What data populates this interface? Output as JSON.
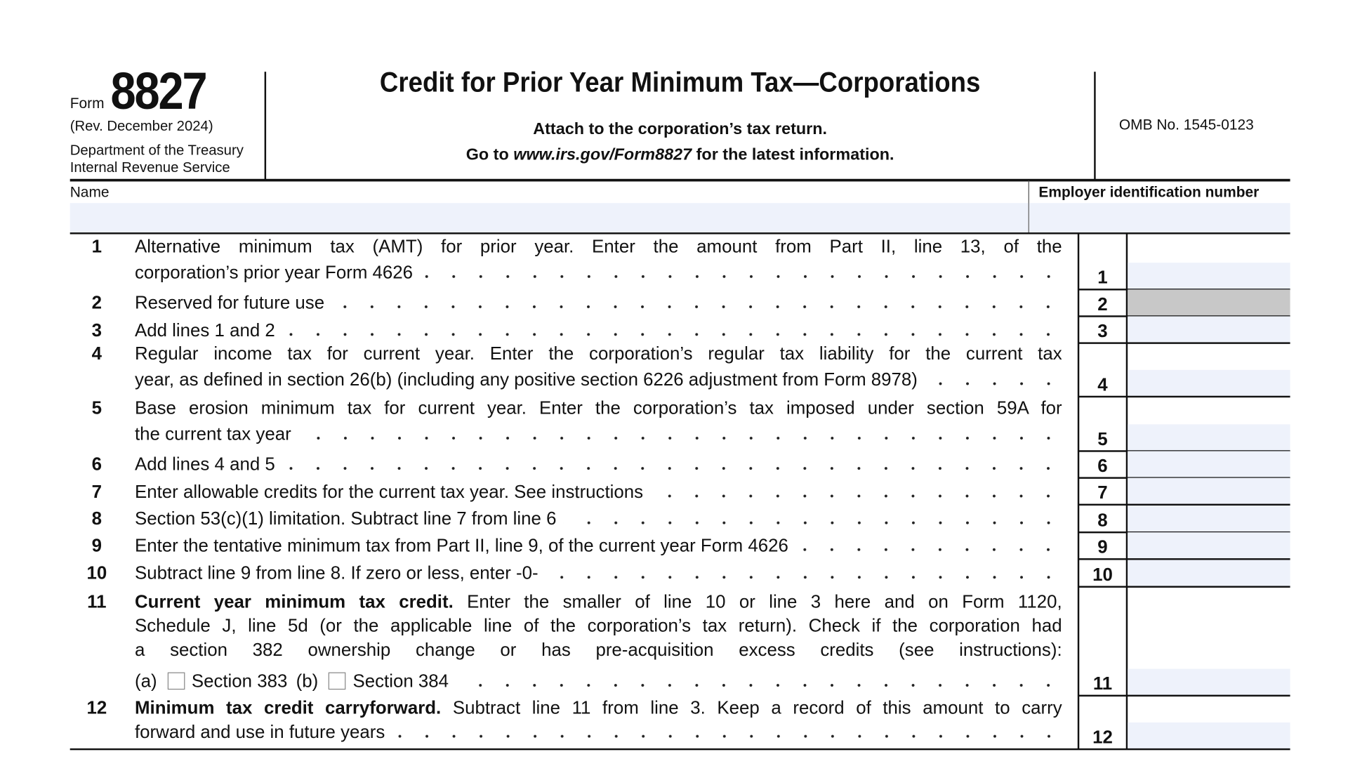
{
  "header": {
    "form_label": "Form",
    "form_number": "8827",
    "revision": "(Rev. December 2024)",
    "department": "Department of the Treasury",
    "agency": "Internal Revenue Service",
    "title": "Credit for Prior Year Minimum Tax—Corporations",
    "attach": "Attach to the corporation’s tax return.",
    "goto_prefix": "Go to ",
    "goto_url": "www.irs.gov/Form8827",
    "goto_suffix": " for the latest information.",
    "omb": "OMB No. 1545-0123"
  },
  "fields": {
    "name_label": "Name",
    "name_value": "",
    "ein_label": "Employer identification number",
    "ein_value": ""
  },
  "colors": {
    "field_fill": "#eef2fb",
    "reserved_fill": "#c8c8c8"
  },
  "lines": [
    {
      "num": "1",
      "text": [
        "Alternative minimum tax (AMT) for prior year. Enter the amount from Part II, line 13, of the",
        "corporation’s prior year Form 4626"
      ],
      "box": "1",
      "value": ""
    },
    {
      "num": "2",
      "text": [
        "Reserved for future use"
      ],
      "box": "2",
      "value": "",
      "reserved": true
    },
    {
      "num": "3",
      "text": [
        "Add lines 1 and 2"
      ],
      "box": "3",
      "value": ""
    },
    {
      "num": "4",
      "text": [
        "Regular income tax for current year. Enter the corporation’s regular tax liability for the current tax",
        "year, as defined in section 26(b) (including any positive section 6226 adjustment from Form 8978)"
      ],
      "box": "4",
      "value": ""
    },
    {
      "num": "5",
      "text": [
        "Base erosion minimum tax for current year. Enter the corporation’s tax imposed under section 59A for",
        "the current tax year"
      ],
      "box": "5",
      "value": ""
    },
    {
      "num": "6",
      "text": [
        "Add lines 4 and 5"
      ],
      "box": "6",
      "value": ""
    },
    {
      "num": "7",
      "text": [
        "Enter allowable credits for the current tax year. See instructions"
      ],
      "box": "7",
      "value": ""
    },
    {
      "num": "8",
      "text": [
        "Section 53(c)(1) limitation. Subtract line 7 from line 6"
      ],
      "box": "8",
      "value": ""
    },
    {
      "num": "9",
      "text": [
        "Enter the tentative minimum tax from Part II, line 9, of the current year Form 4626"
      ],
      "box": "9",
      "value": ""
    },
    {
      "num": "10",
      "text": [
        "Subtract line 9 from line 8. If zero or less, enter -0-"
      ],
      "box": "10",
      "value": ""
    },
    {
      "num": "11",
      "bold_lead": "Current year minimum tax credit.",
      "text": [
        " Enter the smaller of line 10 or line 3 here and on Form 1120,",
        "Schedule J, line 5d (or the applicable line of the corporation’s tax return). Check if the corporation had",
        "a section 382 ownership change or has pre-acquisition excess credits (see instructions):"
      ],
      "options": [
        {
          "tag": "(a)",
          "label": "Section 383",
          "checked": false
        },
        {
          "tag": "(b)",
          "label": "Section 384",
          "checked": false
        }
      ],
      "box": "11",
      "value": ""
    },
    {
      "num": "12",
      "bold_lead": "Minimum tax credit carryforward.",
      "text": [
        " Subtract line 11 from line 3. Keep a record of this amount to carry",
        "forward and use in future years"
      ],
      "box": "12",
      "value": ""
    }
  ]
}
